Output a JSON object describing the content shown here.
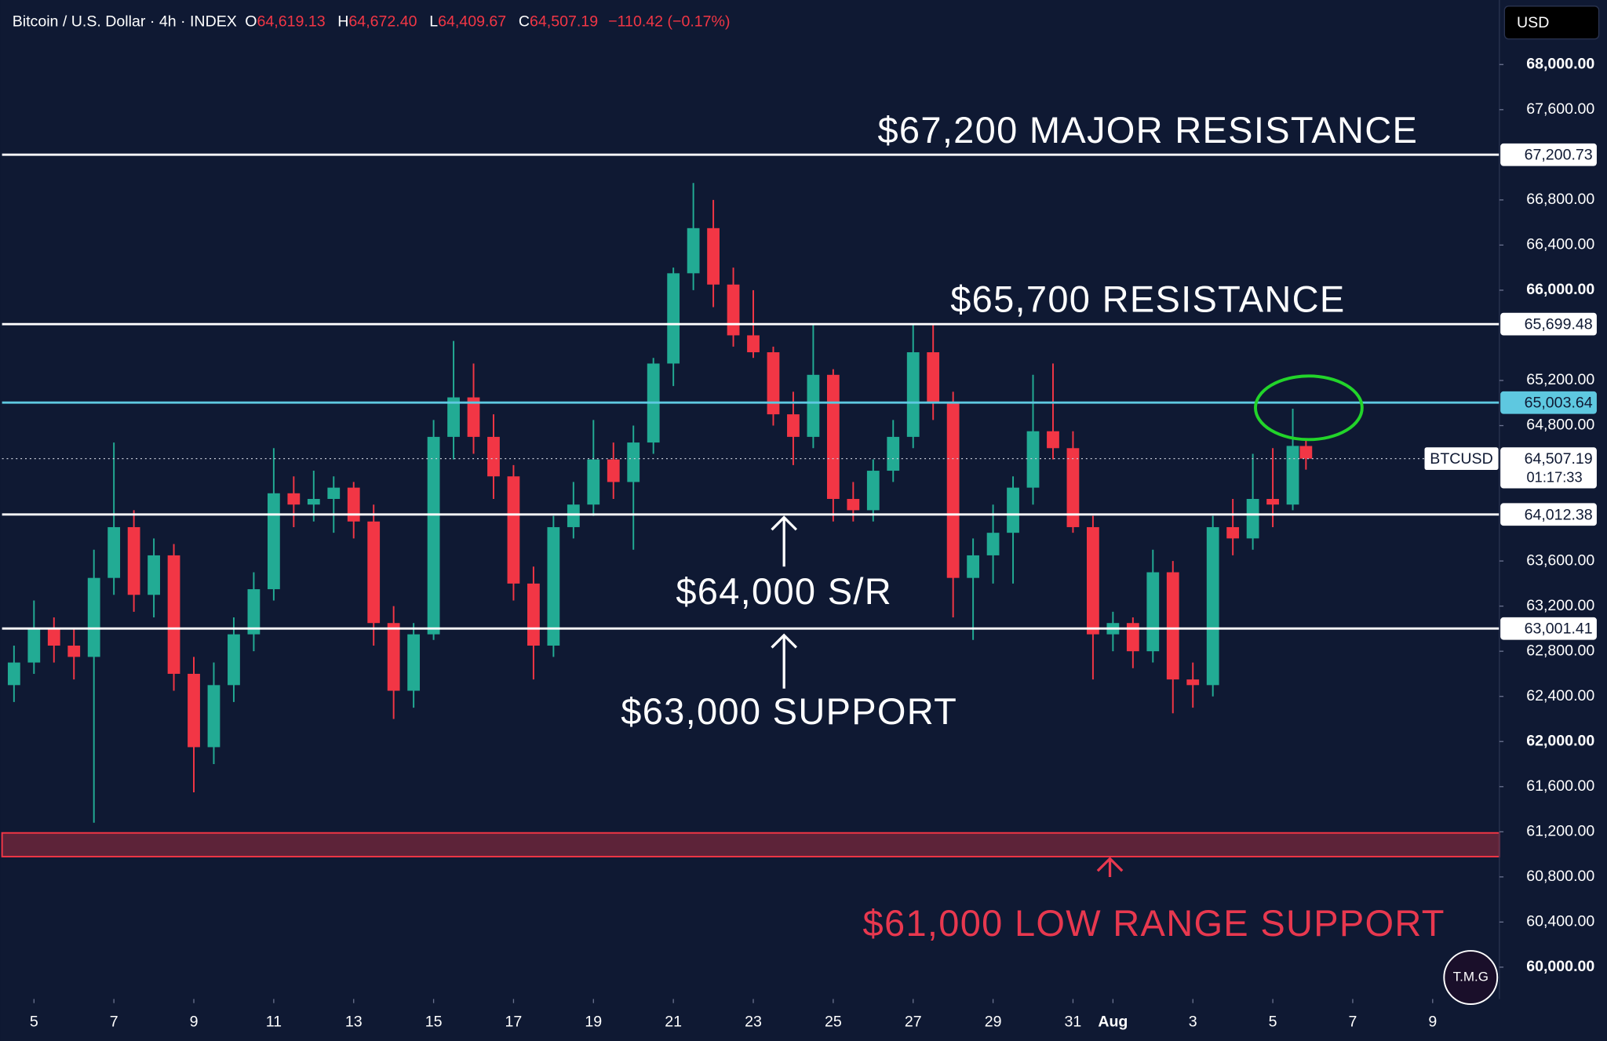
{
  "chart_data": {
    "type": "candlestick",
    "header": {
      "symbol": "Bitcoin / U.S. Dollar · 4h · INDEX",
      "ohlc": [
        {
          "key": "O",
          "value": "64,619.13"
        },
        {
          "key": "H",
          "value": "64,672.40"
        },
        {
          "key": "L",
          "value": "64,409.67"
        },
        {
          "key": "C",
          "value": "64,507.19"
        }
      ],
      "change": "−110.42 (−0.17%)"
    },
    "currency": "USD",
    "up_color": "#22ab94",
    "down_color": "#f23645",
    "xlim": [
      4.15,
      41.67
    ],
    "xticks": [
      5,
      7,
      9,
      11,
      13,
      15,
      17,
      19,
      21,
      23,
      25,
      27,
      29,
      31,
      {
        "value": 32,
        "label": "Aug"
      },
      {
        "value": 34,
        "label": "3"
      },
      {
        "value": 36,
        "label": "5"
      },
      {
        "value": 38,
        "label": "7"
      },
      {
        "value": 40,
        "label": "9"
      }
    ],
    "ylim": [
      59718,
      68572
    ],
    "yticks": [
      {
        "value": 68000,
        "label": "68,000.00"
      },
      {
        "value": 67600,
        "label": "67,600.00"
      },
      {
        "value": 66800,
        "label": "66,800.00"
      },
      {
        "value": 66400,
        "label": "66,400.00"
      },
      {
        "value": 66000,
        "label": "66,000.00"
      },
      {
        "value": 65200,
        "label": "65,200.00"
      },
      {
        "value": 64800,
        "label": "64,800.00"
      },
      {
        "value": 63600,
        "label": "63,600.00"
      },
      {
        "value": 63200,
        "label": "63,200.00"
      },
      {
        "value": 62800,
        "label": "62,800.00"
      },
      {
        "value": 62400,
        "label": "62,400.00"
      },
      {
        "value": 62000,
        "label": "62,000.00"
      },
      {
        "value": 61600,
        "label": "61,600.00"
      },
      {
        "value": 61200,
        "label": "61,200.00"
      },
      {
        "value": 60800,
        "label": "60,800.00"
      },
      {
        "value": 60400,
        "label": "60,400.00"
      },
      {
        "value": 60000,
        "label": "60,000.00"
      }
    ],
    "levels": [
      {
        "value": 67200.73,
        "label": "67,200.73",
        "color": "#ffffff"
      },
      {
        "value": 65699.48,
        "label": "65,699.48",
        "color": "#ffffff"
      },
      {
        "value": 65003.64,
        "label": "65,003.64",
        "color": "#5ec8e0"
      },
      {
        "value": 64012.38,
        "label": "64,012.38",
        "color": "#ffffff"
      },
      {
        "value": 63001.41,
        "label": "63,001.41",
        "color": "#ffffff"
      }
    ],
    "last_price": {
      "symbol": "BTCUSD",
      "value": 64507.19,
      "label": "64,507.19",
      "countdown": "01:17:33"
    },
    "zone": {
      "from": 60980,
      "to": 61190,
      "color": "#f23645"
    },
    "annotations": [
      {
        "text": "$67,200 MAJOR RESISTANCE",
        "color": "#ffffff"
      },
      {
        "text": "$65,700 RESISTANCE",
        "color": "#ffffff"
      },
      {
        "text": "$64,000 S/R",
        "color": "#ffffff"
      },
      {
        "text": "$63,000 SUPPORT",
        "color": "#ffffff"
      },
      {
        "text": "$61,000 LOW RANGE SUPPORT",
        "color": "#e8384f"
      }
    ],
    "logo": "T.M.G",
    "candles": [
      {
        "x": 4.5,
        "open": 62500,
        "high": 62850,
        "low": 62350,
        "close": 62700
      },
      {
        "x": 5.0,
        "open": 62700,
        "high": 63250,
        "low": 62600,
        "close": 63000
      },
      {
        "x": 5.5,
        "open": 63000,
        "high": 63100,
        "low": 62700,
        "close": 62850
      },
      {
        "x": 6.0,
        "open": 62850,
        "high": 63000,
        "low": 62550,
        "close": 62750
      },
      {
        "x": 6.5,
        "open": 62750,
        "high": 63700,
        "low": 61280,
        "close": 63450
      },
      {
        "x": 7.0,
        "open": 63450,
        "high": 64650,
        "low": 63300,
        "close": 63900
      },
      {
        "x": 7.5,
        "open": 63900,
        "high": 64050,
        "low": 63150,
        "close": 63300
      },
      {
        "x": 8.0,
        "open": 63300,
        "high": 63800,
        "low": 63100,
        "close": 63650
      },
      {
        "x": 8.5,
        "open": 63650,
        "high": 63750,
        "low": 62450,
        "close": 62600
      },
      {
        "x": 9.0,
        "open": 62600,
        "high": 62750,
        "low": 61550,
        "close": 61950
      },
      {
        "x": 9.5,
        "open": 61950,
        "high": 62700,
        "low": 61800,
        "close": 62500
      },
      {
        "x": 10.0,
        "open": 62500,
        "high": 63100,
        "low": 62350,
        "close": 62950
      },
      {
        "x": 10.5,
        "open": 62950,
        "high": 63500,
        "low": 62800,
        "close": 63350
      },
      {
        "x": 11.0,
        "open": 63350,
        "high": 64600,
        "low": 63250,
        "close": 64200
      },
      {
        "x": 11.5,
        "open": 64200,
        "high": 64350,
        "low": 63900,
        "close": 64100
      },
      {
        "x": 12.0,
        "open": 64100,
        "high": 64400,
        "low": 63950,
        "close": 64150
      },
      {
        "x": 12.5,
        "open": 64150,
        "high": 64350,
        "low": 63850,
        "close": 64250
      },
      {
        "x": 13.0,
        "open": 64250,
        "high": 64300,
        "low": 63800,
        "close": 63950
      },
      {
        "x": 13.5,
        "open": 63950,
        "high": 64100,
        "low": 62850,
        "close": 63050
      },
      {
        "x": 14.0,
        "open": 63050,
        "high": 63200,
        "low": 62200,
        "close": 62450
      },
      {
        "x": 14.5,
        "open": 62450,
        "high": 63050,
        "low": 62300,
        "close": 62950
      },
      {
        "x": 15.0,
        "open": 62950,
        "high": 64850,
        "low": 62900,
        "close": 64700
      },
      {
        "x": 15.5,
        "open": 64700,
        "high": 65550,
        "low": 64500,
        "close": 65050
      },
      {
        "x": 16.0,
        "open": 65050,
        "high": 65350,
        "low": 64550,
        "close": 64700
      },
      {
        "x": 16.5,
        "open": 64700,
        "high": 64900,
        "low": 64150,
        "close": 64350
      },
      {
        "x": 17.0,
        "open": 64350,
        "high": 64450,
        "low": 63250,
        "close": 63400
      },
      {
        "x": 17.5,
        "open": 63400,
        "high": 63550,
        "low": 62550,
        "close": 62850
      },
      {
        "x": 18.0,
        "open": 62850,
        "high": 64000,
        "low": 62750,
        "close": 63900
      },
      {
        "x": 18.5,
        "open": 63900,
        "high": 64300,
        "low": 63800,
        "close": 64100
      },
      {
        "x": 19.0,
        "open": 64100,
        "high": 64850,
        "low": 64000,
        "close": 64500
      },
      {
        "x": 19.5,
        "open": 64500,
        "high": 64650,
        "low": 64150,
        "close": 64300
      },
      {
        "x": 20.0,
        "open": 64300,
        "high": 64800,
        "low": 63700,
        "close": 64650
      },
      {
        "x": 20.5,
        "open": 64650,
        "high": 65400,
        "low": 64550,
        "close": 65350
      },
      {
        "x": 21.0,
        "open": 65350,
        "high": 66200,
        "low": 65150,
        "close": 66150
      },
      {
        "x": 21.5,
        "open": 66150,
        "high": 66950,
        "low": 66000,
        "close": 66550
      },
      {
        "x": 22.0,
        "open": 66550,
        "high": 66800,
        "low": 65850,
        "close": 66050
      },
      {
        "x": 22.5,
        "open": 66050,
        "high": 66200,
        "low": 65500,
        "close": 65600
      },
      {
        "x": 23.0,
        "open": 65600,
        "high": 66000,
        "low": 65400,
        "close": 65450
      },
      {
        "x": 23.5,
        "open": 65450,
        "high": 65500,
        "low": 64800,
        "close": 64900
      },
      {
        "x": 24.0,
        "open": 64900,
        "high": 65100,
        "low": 64450,
        "close": 64700
      },
      {
        "x": 24.5,
        "open": 64700,
        "high": 65700,
        "low": 64600,
        "close": 65250
      },
      {
        "x": 25.0,
        "open": 65250,
        "high": 65300,
        "low": 63950,
        "close": 64150
      },
      {
        "x": 25.5,
        "open": 64150,
        "high": 64300,
        "low": 63950,
        "close": 64050
      },
      {
        "x": 26.0,
        "open": 64050,
        "high": 64500,
        "low": 63950,
        "close": 64400
      },
      {
        "x": 26.5,
        "open": 64400,
        "high": 64850,
        "low": 64300,
        "close": 64700
      },
      {
        "x": 27.0,
        "open": 64700,
        "high": 65700,
        "low": 64600,
        "close": 65450
      },
      {
        "x": 27.5,
        "open": 65450,
        "high": 65700,
        "low": 64850,
        "close": 65000
      },
      {
        "x": 28.0,
        "open": 65000,
        "high": 65100,
        "low": 63100,
        "close": 63450
      },
      {
        "x": 28.5,
        "open": 63450,
        "high": 63800,
        "low": 62900,
        "close": 63650
      },
      {
        "x": 29.0,
        "open": 63650,
        "high": 64100,
        "low": 63400,
        "close": 63850
      },
      {
        "x": 29.5,
        "open": 63850,
        "high": 64350,
        "low": 63400,
        "close": 64250
      },
      {
        "x": 30.0,
        "open": 64250,
        "high": 65250,
        "low": 64100,
        "close": 64750
      },
      {
        "x": 30.5,
        "open": 64750,
        "high": 65350,
        "low": 64500,
        "close": 64600
      },
      {
        "x": 31.0,
        "open": 64600,
        "high": 64750,
        "low": 63850,
        "close": 63900
      },
      {
        "x": 31.5,
        "open": 63900,
        "high": 64000,
        "low": 62550,
        "close": 62950
      },
      {
        "x": 32.0,
        "open": 62950,
        "high": 63150,
        "low": 62800,
        "close": 63050
      },
      {
        "x": 32.5,
        "open": 63050,
        "high": 63100,
        "low": 62650,
        "close": 62800
      },
      {
        "x": 33.0,
        "open": 62800,
        "high": 63700,
        "low": 62700,
        "close": 63500
      },
      {
        "x": 33.5,
        "open": 63500,
        "high": 63600,
        "low": 62250,
        "close": 62550
      },
      {
        "x": 34.0,
        "open": 62550,
        "high": 62700,
        "low": 62300,
        "close": 62500
      },
      {
        "x": 34.5,
        "open": 62500,
        "high": 64000,
        "low": 62400,
        "close": 63900
      },
      {
        "x": 35.0,
        "open": 63900,
        "high": 64150,
        "low": 63650,
        "close": 63800
      },
      {
        "x": 35.5,
        "open": 63800,
        "high": 64550,
        "low": 63700,
        "close": 64150
      },
      {
        "x": 36.0,
        "open": 64150,
        "high": 64600,
        "low": 63900,
        "close": 64100
      },
      {
        "x": 36.5,
        "open": 64100,
        "high": 64950,
        "low": 64050,
        "close": 64620
      },
      {
        "x": 36.83,
        "open": 64619.13,
        "high": 64672.4,
        "low": 64409.67,
        "close": 64507.19
      }
    ]
  }
}
